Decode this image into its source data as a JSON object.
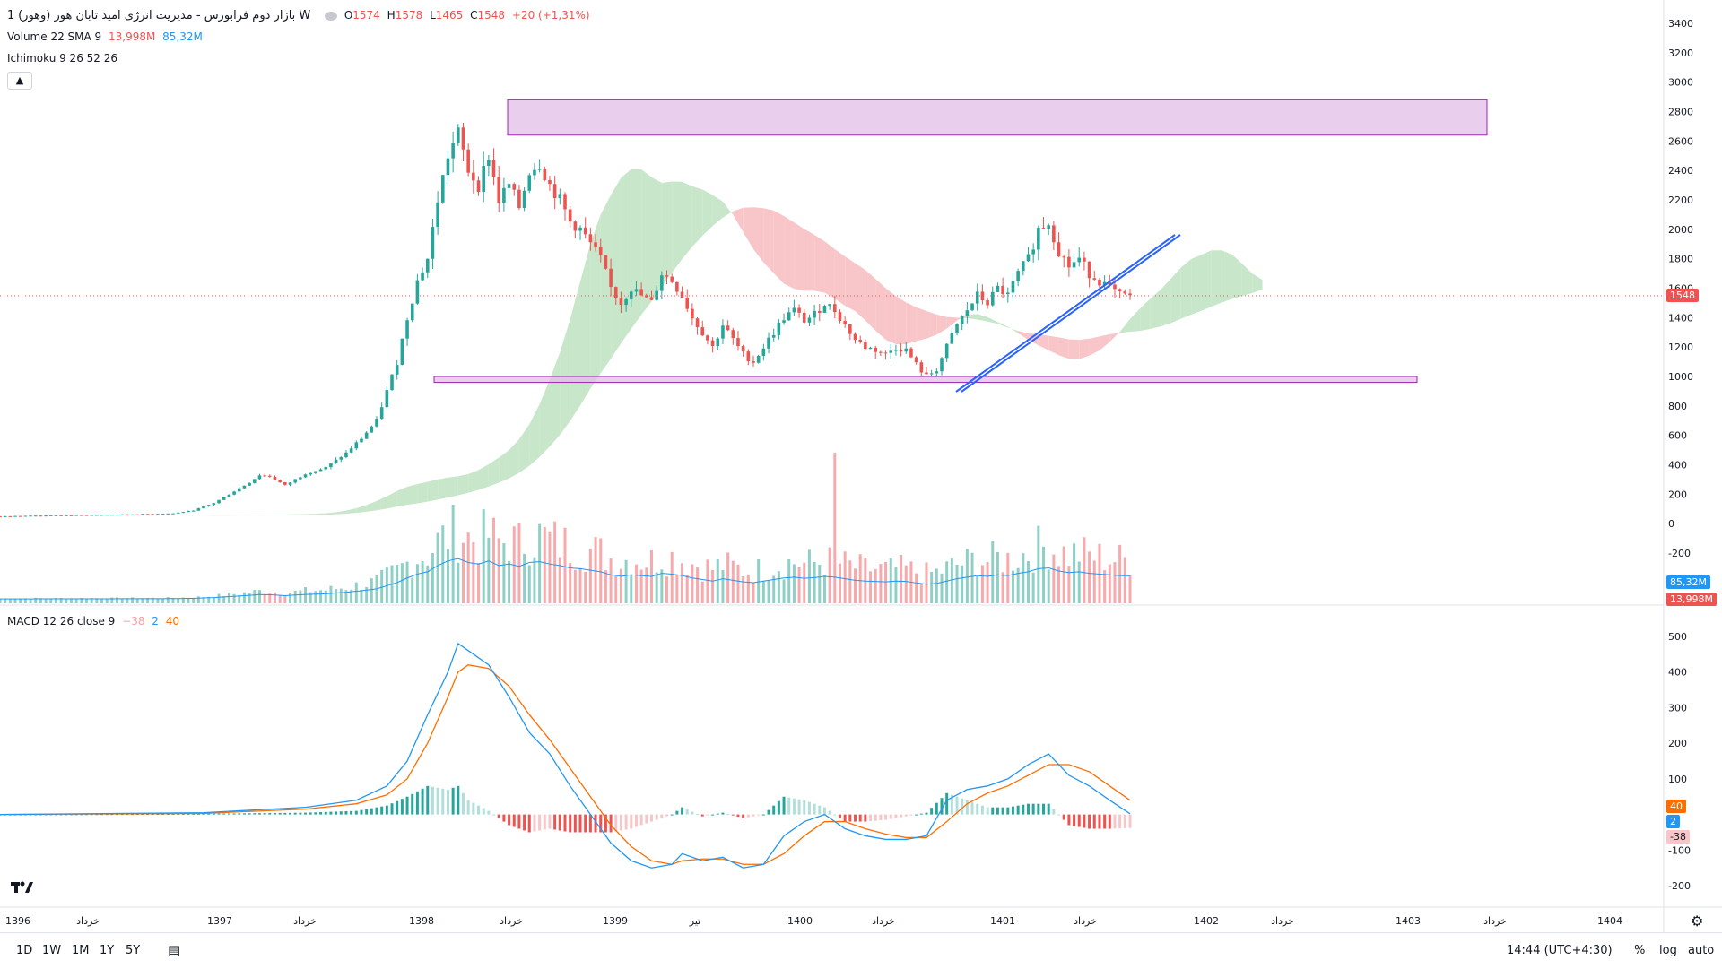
{
  "symbol": {
    "title": "بازار دوم فرابورس - مدیریت انرژی امید تابان هور (وهور)",
    "interval": "1W",
    "open_label": "O",
    "open": "1574",
    "high_label": "H",
    "high": "1578",
    "low_label": "L",
    "low": "1465",
    "close_label": "C",
    "close": "1548",
    "change": "+20 (+1,31%)"
  },
  "volume_legend": {
    "label": "Volume 22 SMA 9",
    "value1": "13,998M",
    "value2": "85,32M"
  },
  "ichimoku_legend": {
    "label": "Ichimoku 9 26 52 26"
  },
  "macd_legend": {
    "label": "MACD 12 26 close 9",
    "hist": "−38",
    "macd": "2",
    "signal": "40"
  },
  "collapse_icon": "chevron-up-icon",
  "price_tag": "1548",
  "volume_tags": {
    "sma": "85,32M",
    "volume": "13,998M"
  },
  "macd_tags": {
    "signal": "40",
    "macd": "2",
    "hist": "-38"
  },
  "bottom": {
    "timeframes": [
      "1D",
      "1W",
      "1M",
      "1Y",
      "5Y"
    ],
    "clock": "14:44 (UTC+4:30)",
    "percent": "%",
    "log": "log",
    "auto": "auto"
  },
  "colors": {
    "up": "#26a69a",
    "down": "#ef5350",
    "cloud_up": "#c8e6c9",
    "cloud_down": "#f8c6c9",
    "zone": "#e1bee7",
    "zone_border": "#9c27b0",
    "trendline": "#2962ff",
    "macd": "#2196f3",
    "signal": "#ff6d00"
  },
  "chart_data": [
    {
      "type": "candlestick",
      "y_axis_ticks": [
        "3400",
        "3200",
        "3000",
        "2800",
        "2600",
        "2400",
        "2200",
        "2000",
        "1800",
        "1600",
        "1400",
        "1200",
        "1000",
        "800",
        "600",
        "400",
        "200",
        "0",
        "-200"
      ],
      "x_axis_ticks": [
        "1396",
        "خرداد",
        "1397",
        "خرداد",
        "1398",
        "خرداد",
        "1399",
        "تیر",
        "1400",
        "خرداد",
        "1401",
        "خرداد",
        "1402",
        "خرداد",
        "1403",
        "خرداد",
        "1404"
      ],
      "ylim": [
        -200,
        3400
      ],
      "last_price": 1548,
      "zones": [
        {
          "name": "resistance",
          "y_low": 2640,
          "y_high": 2880
        },
        {
          "name": "support",
          "y_low": 960,
          "y_high": 1000
        }
      ],
      "path_points": [
        [
          0,
          50
        ],
        [
          8,
          55
        ],
        [
          16,
          58
        ],
        [
          24,
          62
        ],
        [
          30,
          66
        ],
        [
          34,
          70
        ],
        [
          38,
          90
        ],
        [
          42,
          140
        ],
        [
          46,
          220
        ],
        [
          49,
          280
        ],
        [
          51,
          330
        ],
        [
          53,
          320
        ],
        [
          56,
          260
        ],
        [
          60,
          340
        ],
        [
          64,
          380
        ],
        [
          68,
          480
        ],
        [
          71,
          580
        ],
        [
          74,
          700
        ],
        [
          76,
          900
        ],
        [
          78,
          1100
        ],
        [
          80,
          1400
        ],
        [
          82,
          1650
        ],
        [
          84,
          1800
        ],
        [
          86,
          2200
        ],
        [
          88,
          2500
        ],
        [
          90,
          2650
        ],
        [
          92,
          2400
        ],
        [
          94,
          2300
        ],
        [
          96,
          2500
        ],
        [
          98,
          2200
        ],
        [
          100,
          2300
        ],
        [
          102,
          2150
        ],
        [
          104,
          2400
        ],
        [
          106,
          2450
        ],
        [
          108,
          2300
        ],
        [
          110,
          2200
        ],
        [
          112,
          2050
        ],
        [
          114,
          2000
        ],
        [
          116,
          1900
        ],
        [
          118,
          1800
        ],
        [
          120,
          1600
        ],
        [
          122,
          1500
        ],
        [
          124,
          1600
        ],
        [
          126,
          1550
        ],
        [
          128,
          1500
        ],
        [
          130,
          1700
        ],
        [
          132,
          1650
        ],
        [
          134,
          1550
        ],
        [
          136,
          1400
        ],
        [
          138,
          1300
        ],
        [
          140,
          1200
        ],
        [
          142,
          1350
        ],
        [
          144,
          1250
        ],
        [
          146,
          1150
        ],
        [
          148,
          1100
        ],
        [
          150,
          1200
        ],
        [
          152,
          1300
        ],
        [
          154,
          1400
        ],
        [
          156,
          1450
        ],
        [
          158,
          1380
        ],
        [
          160,
          1420
        ],
        [
          162,
          1500
        ],
        [
          164,
          1450
        ],
        [
          166,
          1350
        ],
        [
          168,
          1250
        ],
        [
          170,
          1200
        ],
        [
          172,
          1180
        ],
        [
          174,
          1150
        ],
        [
          176,
          1200
        ],
        [
          178,
          1180
        ],
        [
          180,
          1080
        ],
        [
          182,
          1000
        ],
        [
          184,
          1050
        ],
        [
          186,
          1200
        ],
        [
          188,
          1350
        ],
        [
          190,
          1450
        ],
        [
          192,
          1550
        ],
        [
          194,
          1500
        ],
        [
          196,
          1600
        ],
        [
          198,
          1550
        ],
        [
          200,
          1700
        ],
        [
          202,
          1800
        ],
        [
          204,
          2000
        ],
        [
          206,
          2050
        ],
        [
          208,
          1850
        ],
        [
          210,
          1750
        ],
        [
          212,
          1800
        ],
        [
          214,
          1700
        ],
        [
          216,
          1650
        ],
        [
          218,
          1600
        ],
        [
          220,
          1550
        ],
        [
          222,
          1548
        ]
      ]
    },
    {
      "type": "bar",
      "name": "Volume",
      "sma_value": "85,32M",
      "last_value": "13,998M"
    },
    {
      "type": "line",
      "name": "MACD 12 26 close 9",
      "y_axis_ticks": [
        "500",
        "400",
        "300",
        "200",
        "100",
        "-100",
        "-200"
      ],
      "ylim": [
        -230,
        530
      ],
      "macd_last": 2,
      "signal_last": 40,
      "hist_last": -38,
      "macd_points": [
        [
          0,
          0
        ],
        [
          40,
          5
        ],
        [
          60,
          20
        ],
        [
          70,
          40
        ],
        [
          76,
          80
        ],
        [
          80,
          150
        ],
        [
          84,
          280
        ],
        [
          88,
          400
        ],
        [
          90,
          480
        ],
        [
          92,
          460
        ],
        [
          96,
          420
        ],
        [
          100,
          330
        ],
        [
          104,
          230
        ],
        [
          108,
          170
        ],
        [
          112,
          80
        ],
        [
          116,
          0
        ],
        [
          120,
          -80
        ],
        [
          124,
          -130
        ],
        [
          128,
          -150
        ],
        [
          132,
          -140
        ],
        [
          134,
          -110
        ],
        [
          138,
          -130
        ],
        [
          142,
          -120
        ],
        [
          146,
          -150
        ],
        [
          150,
          -140
        ],
        [
          154,
          -60
        ],
        [
          158,
          -20
        ],
        [
          162,
          0
        ],
        [
          166,
          -40
        ],
        [
          170,
          -60
        ],
        [
          174,
          -70
        ],
        [
          178,
          -70
        ],
        [
          182,
          -60
        ],
        [
          186,
          40
        ],
        [
          190,
          70
        ],
        [
          194,
          80
        ],
        [
          198,
          100
        ],
        [
          202,
          140
        ],
        [
          206,
          170
        ],
        [
          210,
          110
        ],
        [
          214,
          80
        ],
        [
          218,
          40
        ],
        [
          222,
          2
        ]
      ],
      "signal_points": [
        [
          0,
          0
        ],
        [
          40,
          3
        ],
        [
          60,
          15
        ],
        [
          70,
          30
        ],
        [
          76,
          55
        ],
        [
          80,
          100
        ],
        [
          84,
          200
        ],
        [
          88,
          330
        ],
        [
          90,
          400
        ],
        [
          92,
          420
        ],
        [
          96,
          410
        ],
        [
          100,
          360
        ],
        [
          104,
          280
        ],
        [
          108,
          210
        ],
        [
          112,
          130
        ],
        [
          116,
          50
        ],
        [
          120,
          -30
        ],
        [
          124,
          -90
        ],
        [
          128,
          -130
        ],
        [
          132,
          -140
        ],
        [
          134,
          -130
        ],
        [
          138,
          -125
        ],
        [
          142,
          -125
        ],
        [
          146,
          -140
        ],
        [
          150,
          -140
        ],
        [
          154,
          -110
        ],
        [
          158,
          -60
        ],
        [
          162,
          -20
        ],
        [
          166,
          -20
        ],
        [
          170,
          -40
        ],
        [
          174,
          -55
        ],
        [
          178,
          -65
        ],
        [
          182,
          -65
        ],
        [
          186,
          -20
        ],
        [
          190,
          30
        ],
        [
          194,
          60
        ],
        [
          198,
          80
        ],
        [
          202,
          110
        ],
        [
          206,
          140
        ],
        [
          210,
          140
        ],
        [
          214,
          120
        ],
        [
          218,
          80
        ],
        [
          222,
          40
        ]
      ]
    }
  ]
}
